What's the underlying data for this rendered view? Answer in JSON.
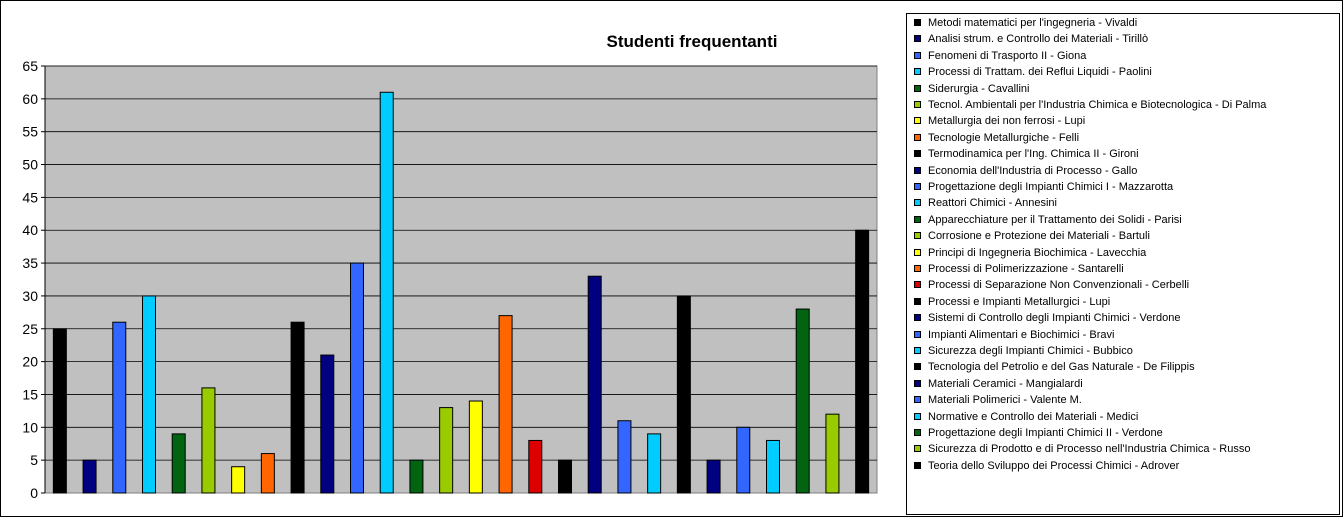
{
  "chart_data": {
    "type": "bar",
    "title": "Studenti frequentanti",
    "xlabel": "",
    "ylabel": "",
    "ylim": [
      0,
      65
    ],
    "yticks": [
      0,
      5,
      10,
      15,
      20,
      25,
      30,
      35,
      40,
      45,
      50,
      55,
      60,
      65
    ],
    "grid": true,
    "legend_placement": "right",
    "plot_background": "#c0c0c0",
    "series": [
      {
        "name": "Metodi matematici per l'ingegneria - Vivaldi",
        "value": 25,
        "color": "#000000"
      },
      {
        "name": "Analisi strum. e Controllo dei Materiali - Tirillò",
        "value": 5,
        "color": "#000080"
      },
      {
        "name": "Fenomeni di Trasporto II - Giona",
        "value": 26,
        "color": "#3366ff"
      },
      {
        "name": "Processi di Trattam. dei Reflui Liquidi - Paolini",
        "value": 30,
        "color": "#00ccff"
      },
      {
        "name": "Siderurgia - Cavallini",
        "value": 9,
        "color": "#006411"
      },
      {
        "name": "Tecnol. Ambientali per l'Industria Chimica e Biotecnologica - Di Palma",
        "value": 16,
        "color": "#99cc00"
      },
      {
        "name": "Metallurgia dei non ferrosi - Lupi",
        "value": 4,
        "color": "#ffff00"
      },
      {
        "name": "Tecnologie Metallurgiche - Felli",
        "value": 6,
        "color": "#ff6600"
      },
      {
        "name": "Termodinamica per l'Ing. Chimica II - Gironi",
        "value": 26,
        "color": "#000000"
      },
      {
        "name": "Economia dell'Industria di Processo - Gallo",
        "value": 21,
        "color": "#000080"
      },
      {
        "name": "Progettazione degli Impianti Chimici I - Mazzarotta",
        "value": 35,
        "color": "#3366ff"
      },
      {
        "name": "Reattori Chimici - Annesini",
        "value": 61,
        "color": "#00ccff"
      },
      {
        "name": "Apparecchiature per il Trattamento dei Solidi - Parisi",
        "value": 5,
        "color": "#006411"
      },
      {
        "name": "Corrosione e Protezione dei Materiali - Bartuli",
        "value": 13,
        "color": "#99cc00"
      },
      {
        "name": "Principi di Ingegneria Biochimica - Lavecchia",
        "value": 14,
        "color": "#ffff00"
      },
      {
        "name": "Processi di Polimerizzazione - Santarelli",
        "value": 27,
        "color": "#ff6600"
      },
      {
        "name": "Processi di Separazione Non Convenzionali - Cerbelli",
        "value": 8,
        "color": "#dd0000"
      },
      {
        "name": "Processi e Impianti Metallurgici - Lupi",
        "value": 5,
        "color": "#000000"
      },
      {
        "name": "Sistemi di Controllo degli Impianti Chimici - Verdone",
        "value": 33,
        "color": "#000080"
      },
      {
        "name": "Impianti Alimentari e Biochimici - Bravi",
        "value": 11,
        "color": "#3366ff"
      },
      {
        "name": "Sicurezza degli Impianti Chimici - Bubbico",
        "value": 9,
        "color": "#00ccff"
      },
      {
        "name": "Tecnologia del Petrolio e del Gas Naturale - De Filippis",
        "value": 30,
        "color": "#000000"
      },
      {
        "name": "Materiali Ceramici - Mangialardi",
        "value": 5,
        "color": "#000080"
      },
      {
        "name": "Materiali Polimerici - Valente M.",
        "value": 10,
        "color": "#3366ff"
      },
      {
        "name": "Normative e Controllo dei Materiali - Medici",
        "value": 8,
        "color": "#00ccff"
      },
      {
        "name": "Progettazione degli Impianti Chimici II - Verdone",
        "value": 28,
        "color": "#006411"
      },
      {
        "name": "Sicurezza di Prodotto e di Processo nell'Industria Chimica - Russo",
        "value": 12,
        "color": "#99cc00"
      },
      {
        "name": "Teoria dello Sviluppo dei Processi Chimici - Adrover",
        "value": 40,
        "color": "#000000"
      }
    ]
  }
}
